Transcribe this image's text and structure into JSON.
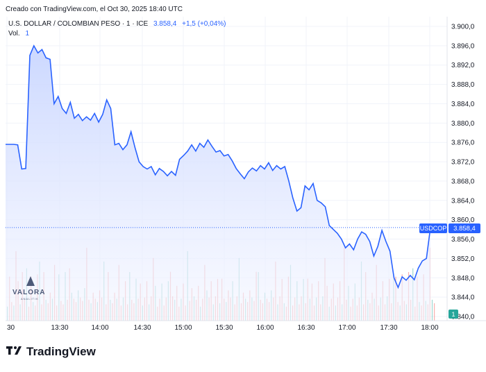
{
  "header": {
    "created": "Creado con TradingView.com, el Oct 30, 2025 18:40 UTC",
    "symbol_line": "U.S. DOLLAR / COLOMBIAN PESO · 1 · ICE",
    "price_value": "3.858,4",
    "price_change": "+1,5 (+0,04%)",
    "vol_label": "Vol.",
    "vol_value": "1"
  },
  "badges": {
    "symbol": "USDCOP",
    "last_price": "3.858,4",
    "volume": "1"
  },
  "watermark": {
    "brand": "VALORA",
    "sub": "ANALITIK"
  },
  "footer": {
    "brand": "TradingView",
    "logo_icon": "tradingview-logo-icon"
  },
  "colors": {
    "line": "#2962ff",
    "area_top": "#c9d6ff",
    "area_bottom": "#f4f6ff",
    "vol_up": "#26a69a",
    "vol_down": "#ef5350",
    "badge": "#2962ff",
    "vol_badge": "#26a69a"
  },
  "chart_data": {
    "type": "area",
    "title": "U.S. DOLLAR / COLOMBIAN PESO · 1 · ICE",
    "xlabel": "",
    "ylabel": "",
    "x_ticks": [
      "30",
      "13:30",
      "14:00",
      "14:30",
      "15:00",
      "15:30",
      "16:00",
      "16:30",
      "17:00",
      "17:30",
      "18:00"
    ],
    "y_ticks": [
      "3.900,0",
      "3.896,0",
      "3.892,0",
      "3.888,0",
      "3.884,0",
      "3.880,0",
      "3.876,0",
      "3.872,0",
      "3.868,0",
      "3.864,0",
      "3.860,0",
      "3.856,0",
      "3.852,0",
      "3.848,0",
      "3.844,0",
      "3.840,0"
    ],
    "ylim": [
      3839.8,
      3900.5
    ],
    "grid": true,
    "last_value": 3858.4,
    "series": [
      {
        "values": [
          3875.6,
          3875.6,
          3875.6,
          3875.5,
          3870.5,
          3870.6,
          3894.0,
          3896.0,
          3894.5,
          3895.2,
          3893.5,
          3893.2,
          3884.0,
          3885.5,
          3883.0,
          3882.0,
          3884.3,
          3881.0,
          3881.8,
          3880.5,
          3881.3,
          3880.6,
          3882.0,
          3880.2,
          3881.8,
          3884.8,
          3883.0,
          3875.5,
          3875.8,
          3874.5,
          3875.5,
          3878.2,
          3874.9,
          3872.0,
          3871.0,
          3870.5,
          3871.0,
          3869.3,
          3870.6,
          3870.0,
          3869.1,
          3870.0,
          3869.2,
          3872.5,
          3873.3,
          3874.2,
          3875.5,
          3874.2,
          3875.8,
          3875.0,
          3876.5,
          3875.2,
          3874.0,
          3874.3,
          3873.2,
          3873.5,
          3872.2,
          3870.6,
          3869.5,
          3868.5,
          3869.9,
          3870.7,
          3870.1,
          3871.2,
          3870.5,
          3871.8,
          3870.2,
          3871.2,
          3870.5,
          3871.0,
          3868.0,
          3864.5,
          3861.8,
          3862.5,
          3867.0,
          3866.2,
          3867.5,
          3864.0,
          3863.5,
          3862.7,
          3858.8,
          3858.0,
          3857.2,
          3856.0,
          3854.2,
          3855.0,
          3853.8,
          3856.0,
          3857.5,
          3857.0,
          3855.5,
          3852.5,
          3854.5,
          3857.8,
          3855.5,
          3853.5,
          3848.0,
          3846.0,
          3848.2,
          3847.5,
          3848.5,
          3847.6,
          3850.0,
          3851.5,
          3852.0,
          3858.4
        ]
      }
    ],
    "volume_values": [
      1,
      2,
      1,
      1,
      3,
      2,
      1,
      2,
      1,
      3,
      1,
      2,
      1,
      1,
      2,
      3,
      1,
      2,
      1,
      1,
      2,
      1,
      3,
      1,
      2,
      1,
      1,
      2,
      1,
      3,
      2,
      1,
      1,
      2,
      1,
      1,
      2,
      3,
      1,
      1,
      2,
      1,
      1,
      2,
      1,
      3,
      1,
      2,
      1,
      1,
      2,
      1,
      3,
      1,
      1,
      2,
      1,
      2,
      1,
      1,
      3,
      1,
      2,
      1,
      1,
      2,
      1,
      1,
      3,
      2,
      1,
      1,
      2,
      1,
      1,
      2,
      3,
      1,
      1,
      2,
      1,
      1,
      2,
      1,
      3,
      1,
      2,
      1,
      1,
      2,
      1,
      1,
      3,
      2,
      1,
      2,
      1,
      1,
      2,
      1,
      3,
      1,
      1,
      2,
      1,
      2,
      1,
      1,
      3,
      1,
      2,
      1,
      1,
      2,
      1,
      1,
      3,
      2,
      1,
      1,
      2,
      1,
      1,
      2,
      1,
      3,
      1,
      1,
      2,
      1,
      1,
      2,
      3,
      1,
      1,
      2,
      1,
      1,
      2,
      1,
      3,
      1,
      2,
      1,
      1,
      2,
      1,
      1,
      3,
      2,
      1,
      1,
      2,
      1,
      1,
      2,
      1,
      3,
      1,
      2,
      1,
      1,
      2,
      1,
      1,
      3,
      1,
      2,
      1,
      1,
      2,
      1,
      3,
      1,
      1,
      2,
      1,
      1,
      2,
      1,
      3,
      2,
      1,
      1,
      2,
      1,
      1,
      2,
      1,
      3,
      1,
      2,
      1,
      1,
      2,
      1,
      1,
      3,
      1,
      1
    ]
  }
}
